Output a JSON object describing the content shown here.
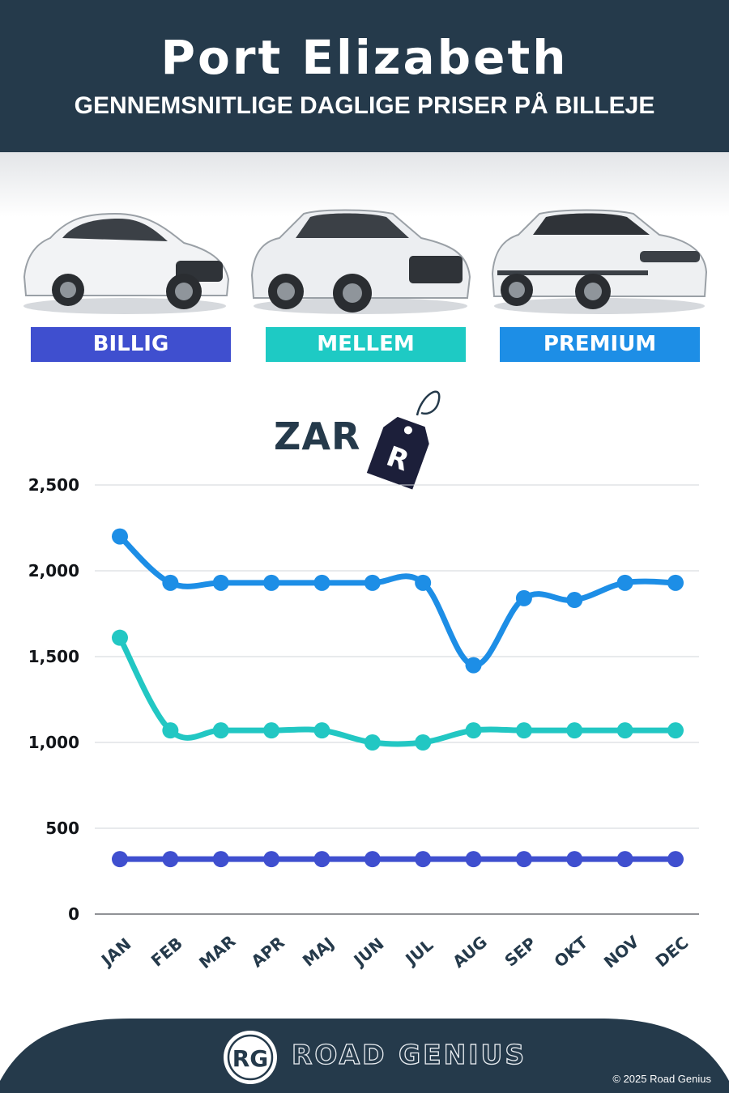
{
  "header": {
    "title": "Port Elizabeth",
    "subtitle": "GENNEMSNITLIGE DAGLIGE PRISER PÅ BILLEJE"
  },
  "categories": [
    {
      "label": "BILLIG",
      "color": "#3f4fcf"
    },
    {
      "label": "MELLEM",
      "color": "#1ecac4"
    },
    {
      "label": "PREMIUM",
      "color": "#1d8ee6"
    }
  ],
  "currency": {
    "code": "ZAR",
    "tag_symbol": "R"
  },
  "chart_data": {
    "type": "line",
    "x": [
      "JAN",
      "FEB",
      "MAR",
      "APR",
      "MAJ",
      "JUN",
      "JUL",
      "AUG",
      "SEP",
      "OKT",
      "NOV",
      "DEC"
    ],
    "ylim": [
      0,
      2500
    ],
    "yticks": [
      "0",
      "500",
      "1,000",
      "1,500",
      "2,000",
      "2,500"
    ],
    "ytick_values": [
      0,
      500,
      1000,
      1500,
      2000,
      2500
    ],
    "grid": true,
    "series": [
      {
        "name": "PREMIUM",
        "color": "#1d8ee6",
        "values": [
          2200,
          1930,
          1930,
          1930,
          1930,
          1930,
          1930,
          1450,
          1840,
          1830,
          1930,
          1930
        ]
      },
      {
        "name": "MELLEM",
        "color": "#22c7c3",
        "values": [
          1610,
          1070,
          1070,
          1070,
          1070,
          1000,
          1000,
          1070,
          1070,
          1070,
          1070,
          1070
        ]
      },
      {
        "name": "BILLIG",
        "color": "#3f4fcf",
        "values": [
          320,
          320,
          320,
          320,
          320,
          320,
          320,
          320,
          320,
          320,
          320,
          320
        ]
      }
    ]
  },
  "footer": {
    "brand": "ROAD GENIUS",
    "badge": "RG",
    "copyright": "© 2025 Road Genius"
  }
}
